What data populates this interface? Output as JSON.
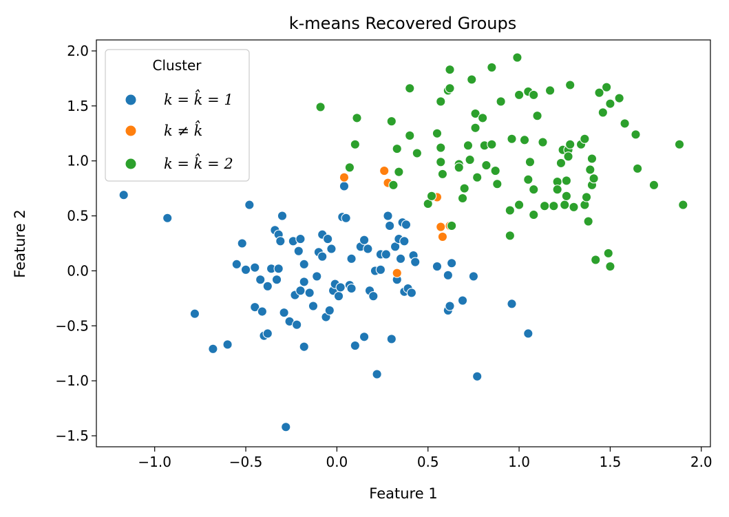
{
  "chart_data": {
    "type": "scatter",
    "title": "k-means Recovered Groups",
    "xlabel": "Feature 1",
    "ylabel": "Feature 2",
    "xlim": [
      -1.32,
      2.05
    ],
    "ylim": [
      -1.6,
      2.1
    ],
    "x_ticks": [
      -1.0,
      -0.5,
      0.0,
      0.5,
      1.0,
      1.5,
      2.0
    ],
    "x_tick_labels": [
      "−1.0",
      "−0.5",
      "0.0",
      "0.5",
      "1.0",
      "1.5",
      "2.0"
    ],
    "y_ticks": [
      -1.5,
      -1.0,
      -0.5,
      0.0,
      0.5,
      1.0,
      1.5,
      2.0
    ],
    "y_tick_labels": [
      "−1.5",
      "−1.0",
      "−0.5",
      "0.0",
      "0.5",
      "1.0",
      "1.5",
      "2.0"
    ],
    "grid": false,
    "legend": {
      "title": "Cluster",
      "position": "top-left",
      "entries": [
        {
          "label": "k = k̂ = 1",
          "color": "#1f77b4"
        },
        {
          "label": "k ≠ k̂",
          "color": "#ff7f0e"
        },
        {
          "label": "k = k̂ = 2",
          "color": "#2ca02c"
        }
      ]
    },
    "series": [
      {
        "name": "k = k̂ = 1",
        "color": "#1f77b4",
        "points": [
          [
            -1.17,
            0.69
          ],
          [
            -0.93,
            0.48
          ],
          [
            -0.78,
            -0.39
          ],
          [
            -0.68,
            -0.71
          ],
          [
            -0.6,
            -0.67
          ],
          [
            -0.55,
            0.06
          ],
          [
            -0.52,
            0.25
          ],
          [
            -0.5,
            0.01
          ],
          [
            -0.48,
            0.6
          ],
          [
            -0.45,
            0.03
          ],
          [
            -0.45,
            -0.33
          ],
          [
            -0.42,
            -0.08
          ],
          [
            -0.41,
            -0.37
          ],
          [
            -0.4,
            -0.59
          ],
          [
            -0.38,
            -0.57
          ],
          [
            -0.38,
            -0.14
          ],
          [
            -0.36,
            0.02
          ],
          [
            -0.34,
            0.37
          ],
          [
            -0.33,
            -0.08
          ],
          [
            -0.32,
            0.02
          ],
          [
            -0.32,
            0.33
          ],
          [
            -0.31,
            0.27
          ],
          [
            -0.3,
            0.5
          ],
          [
            -0.29,
            -0.38
          ],
          [
            -0.28,
            -1.42
          ],
          [
            -0.26,
            -0.46
          ],
          [
            -0.24,
            0.27
          ],
          [
            -0.23,
            -0.22
          ],
          [
            -0.22,
            -0.49
          ],
          [
            -0.21,
            0.18
          ],
          [
            -0.2,
            -0.18
          ],
          [
            -0.2,
            0.29
          ],
          [
            -0.18,
            -0.69
          ],
          [
            -0.18,
            0.06
          ],
          [
            -0.18,
            -0.1
          ],
          [
            -0.15,
            -0.2
          ],
          [
            -0.13,
            -0.32
          ],
          [
            -0.11,
            -0.05
          ],
          [
            -0.1,
            0.17
          ],
          [
            -0.08,
            0.33
          ],
          [
            -0.08,
            0.13
          ],
          [
            -0.06,
            -0.42
          ],
          [
            -0.05,
            0.29
          ],
          [
            -0.04,
            -0.36
          ],
          [
            -0.03,
            0.2
          ],
          [
            -0.02,
            -0.18
          ],
          [
            -0.01,
            -0.12
          ],
          [
            0.01,
            -0.23
          ],
          [
            0.02,
            -0.15
          ],
          [
            0.03,
            0.49
          ],
          [
            0.04,
            0.77
          ],
          [
            0.05,
            0.48
          ],
          [
            0.07,
            -0.13
          ],
          [
            0.08,
            -0.16
          ],
          [
            0.08,
            0.11
          ],
          [
            0.1,
            -0.68
          ],
          [
            0.13,
            0.22
          ],
          [
            0.15,
            0.28
          ],
          [
            0.15,
            -0.6
          ],
          [
            0.17,
            0.2
          ],
          [
            0.18,
            -0.18
          ],
          [
            0.2,
            -0.23
          ],
          [
            0.21,
            0.0
          ],
          [
            0.22,
            -0.94
          ],
          [
            0.24,
            0.01
          ],
          [
            0.24,
            0.15
          ],
          [
            0.27,
            0.15
          ],
          [
            0.28,
            0.5
          ],
          [
            0.29,
            0.41
          ],
          [
            0.3,
            -0.62
          ],
          [
            0.32,
            0.22
          ],
          [
            0.33,
            -0.08
          ],
          [
            0.34,
            0.29
          ],
          [
            0.35,
            0.11
          ],
          [
            0.36,
            0.44
          ],
          [
            0.37,
            -0.19
          ],
          [
            0.37,
            0.27
          ],
          [
            0.38,
            0.42
          ],
          [
            0.39,
            -0.16
          ],
          [
            0.41,
            -0.2
          ],
          [
            0.42,
            0.14
          ],
          [
            0.43,
            0.08
          ],
          [
            0.55,
            0.04
          ],
          [
            0.61,
            -0.04
          ],
          [
            0.61,
            -0.36
          ],
          [
            0.62,
            -0.32
          ],
          [
            0.63,
            0.07
          ],
          [
            0.69,
            -0.27
          ],
          [
            0.75,
            -0.05
          ],
          [
            0.77,
            -0.96
          ],
          [
            0.96,
            -0.3
          ],
          [
            1.05,
            -0.57
          ]
        ]
      },
      {
        "name": "k ≠ k̂",
        "color": "#ff7f0e",
        "points": [
          [
            0.04,
            0.85
          ],
          [
            0.26,
            0.91
          ],
          [
            0.28,
            0.8
          ],
          [
            0.33,
            -0.02
          ],
          [
            0.55,
            0.67
          ],
          [
            0.57,
            0.4
          ],
          [
            0.58,
            0.31
          ],
          [
            0.62,
            0.41
          ]
        ]
      },
      {
        "name": "k = k̂ = 2",
        "color": "#2ca02c",
        "points": [
          [
            -0.09,
            1.49
          ],
          [
            0.07,
            0.94
          ],
          [
            0.1,
            1.15
          ],
          [
            0.11,
            1.39
          ],
          [
            0.3,
            1.36
          ],
          [
            0.31,
            0.78
          ],
          [
            0.33,
            1.11
          ],
          [
            0.34,
            0.9
          ],
          [
            0.4,
            1.66
          ],
          [
            0.4,
            1.23
          ],
          [
            0.44,
            1.07
          ],
          [
            0.5,
            0.61
          ],
          [
            0.52,
            0.68
          ],
          [
            0.55,
            1.25
          ],
          [
            0.57,
            1.54
          ],
          [
            0.57,
            1.12
          ],
          [
            0.57,
            0.99
          ],
          [
            0.58,
            0.88
          ],
          [
            0.61,
            1.64
          ],
          [
            0.62,
            1.66
          ],
          [
            0.62,
            1.83
          ],
          [
            0.63,
            0.41
          ],
          [
            0.67,
            0.97
          ],
          [
            0.67,
            0.94
          ],
          [
            0.69,
            0.66
          ],
          [
            0.7,
            0.75
          ],
          [
            0.72,
            1.14
          ],
          [
            0.73,
            1.01
          ],
          [
            0.74,
            1.74
          ],
          [
            0.76,
            1.3
          ],
          [
            0.76,
            1.43
          ],
          [
            0.77,
            0.85
          ],
          [
            0.8,
            1.39
          ],
          [
            0.81,
            1.14
          ],
          [
            0.82,
            0.96
          ],
          [
            0.85,
            1.15
          ],
          [
            0.85,
            1.85
          ],
          [
            0.87,
            0.91
          ],
          [
            0.88,
            0.79
          ],
          [
            0.9,
            1.54
          ],
          [
            0.95,
            0.55
          ],
          [
            0.95,
            0.32
          ],
          [
            0.96,
            1.2
          ],
          [
            0.99,
            1.94
          ],
          [
            1.0,
            1.6
          ],
          [
            1.0,
            0.6
          ],
          [
            1.03,
            1.19
          ],
          [
            1.05,
            1.63
          ],
          [
            1.05,
            0.83
          ],
          [
            1.06,
            0.99
          ],
          [
            1.08,
            0.51
          ],
          [
            1.08,
            1.6
          ],
          [
            1.08,
            0.74
          ],
          [
            1.1,
            1.41
          ],
          [
            1.13,
            1.17
          ],
          [
            1.14,
            0.59
          ],
          [
            1.17,
            1.64
          ],
          [
            1.19,
            0.59
          ],
          [
            1.21,
            0.81
          ],
          [
            1.21,
            0.74
          ],
          [
            1.23,
            0.98
          ],
          [
            1.24,
            1.1
          ],
          [
            1.25,
            0.6
          ],
          [
            1.26,
            0.82
          ],
          [
            1.26,
            0.68
          ],
          [
            1.27,
            1.1
          ],
          [
            1.27,
            1.04
          ],
          [
            1.28,
            1.69
          ],
          [
            1.28,
            1.15
          ],
          [
            1.3,
            0.58
          ],
          [
            1.34,
            1.15
          ],
          [
            1.36,
            1.2
          ],
          [
            1.36,
            0.6
          ],
          [
            1.37,
            0.67
          ],
          [
            1.38,
            0.45
          ],
          [
            1.39,
            0.92
          ],
          [
            1.4,
            0.78
          ],
          [
            1.4,
            1.02
          ],
          [
            1.41,
            0.84
          ],
          [
            1.42,
            0.1
          ],
          [
            1.44,
            1.62
          ],
          [
            1.46,
            1.44
          ],
          [
            1.48,
            1.67
          ],
          [
            1.49,
            0.16
          ],
          [
            1.5,
            1.52
          ],
          [
            1.5,
            0.04
          ],
          [
            1.55,
            1.57
          ],
          [
            1.58,
            1.34
          ],
          [
            1.64,
            1.24
          ],
          [
            1.65,
            0.93
          ],
          [
            1.74,
            0.78
          ],
          [
            1.88,
            1.15
          ],
          [
            1.9,
            0.6
          ]
        ]
      }
    ]
  }
}
